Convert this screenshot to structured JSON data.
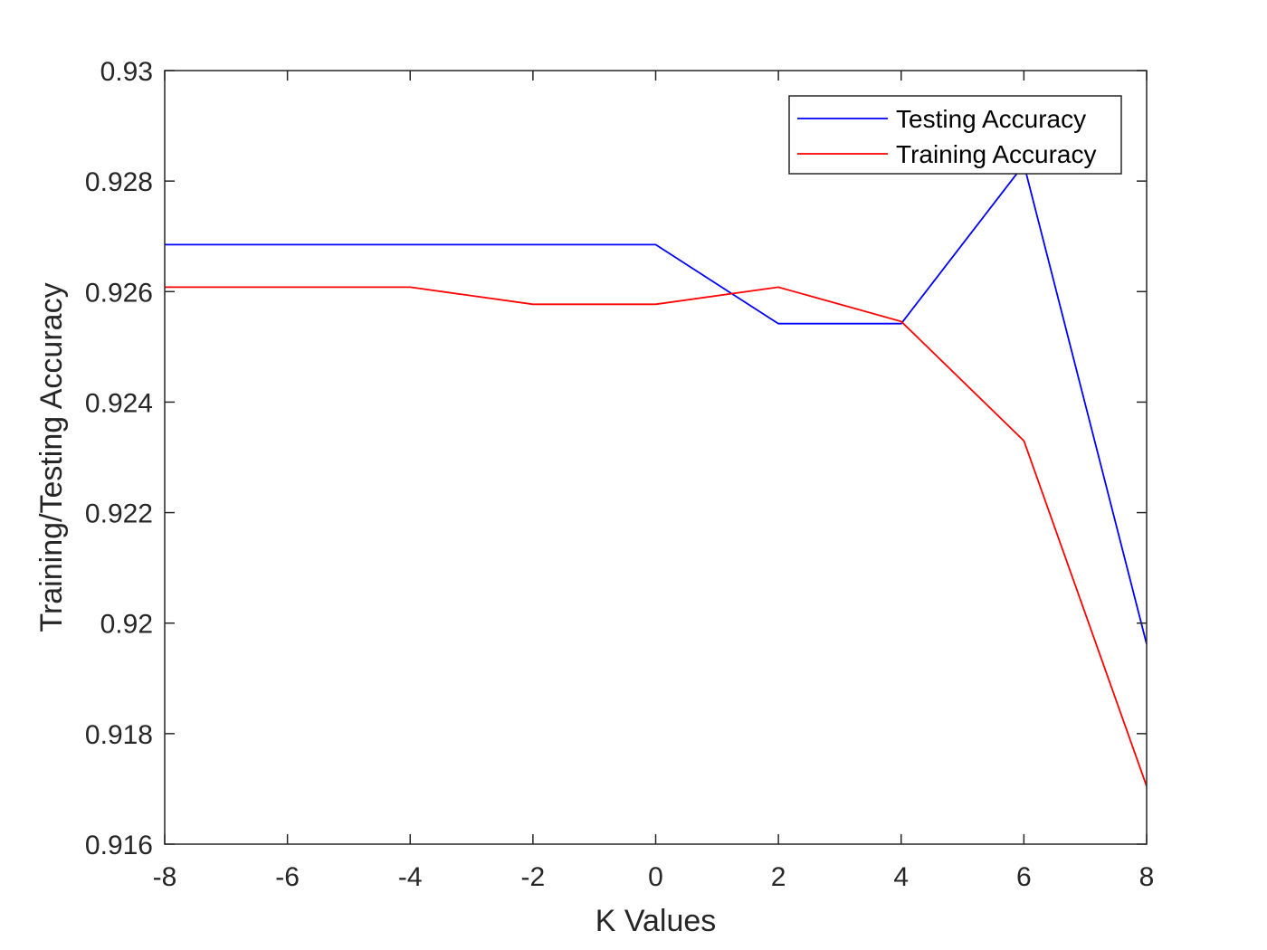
{
  "chart_data": {
    "type": "line",
    "xlabel": "K Values",
    "ylabel": "Training/Testing Accuracy",
    "xlim": [
      -8,
      8
    ],
    "ylim": [
      0.916,
      0.93
    ],
    "x_ticks": [
      -8,
      -6,
      -4,
      -2,
      0,
      2,
      4,
      6,
      8
    ],
    "x_tick_labels": [
      "-8",
      "-6",
      "-4",
      "-2",
      "0",
      "2",
      "4",
      "6",
      "8"
    ],
    "y_ticks": [
      0.916,
      0.918,
      0.92,
      0.922,
      0.924,
      0.926,
      0.928,
      0.93
    ],
    "y_tick_labels": [
      "0.916",
      "0.918",
      "0.92",
      "0.922",
      "0.924",
      "0.926",
      "0.928",
      "0.93"
    ],
    "grid": false,
    "legend_position": "top-right",
    "x": [
      -8,
      -6,
      -4,
      -2,
      0,
      2,
      4,
      6,
      8
    ],
    "series": [
      {
        "name": "Testing Accuracy",
        "color": "#0000ff",
        "values": [
          0.92685,
          0.92685,
          0.92685,
          0.92685,
          0.92685,
          0.92542,
          0.92542,
          0.9283,
          0.91962
        ]
      },
      {
        "name": "Training Accuracy",
        "color": "#ff0000",
        "values": [
          0.92608,
          0.92608,
          0.92608,
          0.92577,
          0.92577,
          0.92608,
          0.92546,
          0.9233,
          0.91705
        ]
      }
    ]
  }
}
